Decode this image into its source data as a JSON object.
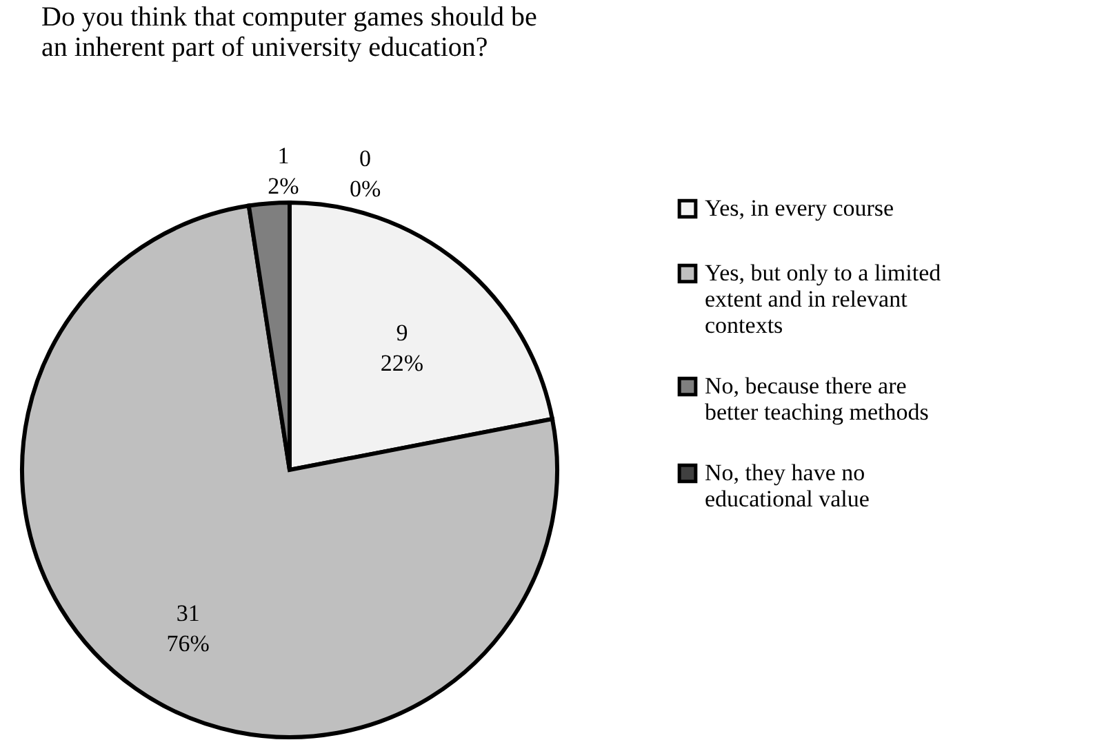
{
  "chart_data": {
    "type": "pie",
    "title": "Do you think that computer games should be an inherent part of university education?",
    "categories": [
      "Yes, in every course",
      "Yes, but only to a limited extent and in relevant contexts",
      "No, because there are better teaching methods",
      "No, they have no educational value"
    ],
    "values": [
      9,
      31,
      1,
      0
    ],
    "colors": [
      "#f2f2f2",
      "#bfbfbf",
      "#7f7f7f",
      "#404040"
    ],
    "value_labels": [
      "9\n22%",
      "31\n76%",
      "1\n2%",
      "0\n0%"
    ],
    "legend": "right"
  }
}
